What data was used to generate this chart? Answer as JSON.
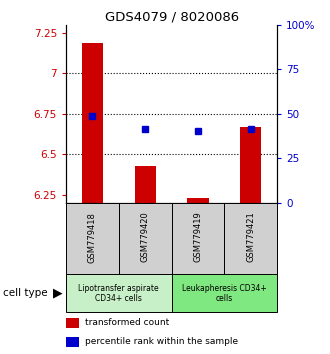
{
  "title": "GDS4079 / 8020086",
  "samples": [
    "GSM779418",
    "GSM779420",
    "GSM779419",
    "GSM779421"
  ],
  "red_values": [
    7.19,
    6.43,
    6.23,
    6.67
  ],
  "blue_values": [
    6.735,
    6.655,
    6.645,
    6.655
  ],
  "ylim_left": [
    6.2,
    7.3
  ],
  "ylim_right": [
    0,
    100
  ],
  "yticks_left": [
    6.25,
    6.5,
    6.75,
    7.0,
    7.25
  ],
  "yticks_right": [
    0,
    25,
    50,
    75,
    100
  ],
  "ytick_labels_right": [
    "0",
    "25",
    "50",
    "75",
    "100%"
  ],
  "ytick_labels_left": [
    "6.25",
    "6.5",
    "6.75",
    "7",
    "7.25"
  ],
  "dotted_lines": [
    6.5,
    6.75,
    7.0
  ],
  "group1_label": "Lipotransfer aspirate\nCD34+ cells",
  "group2_label": "Leukapheresis CD34+\ncells",
  "cell_type_label": "cell type",
  "legend1": "transformed count",
  "legend2": "percentile rank within the sample",
  "red_color": "#cc0000",
  "blue_color": "#0000cc",
  "bar_baseline": 6.2,
  "group1_color": "#c8f0c8",
  "group2_color": "#80e880",
  "sample_bg_color": "#d0d0d0"
}
